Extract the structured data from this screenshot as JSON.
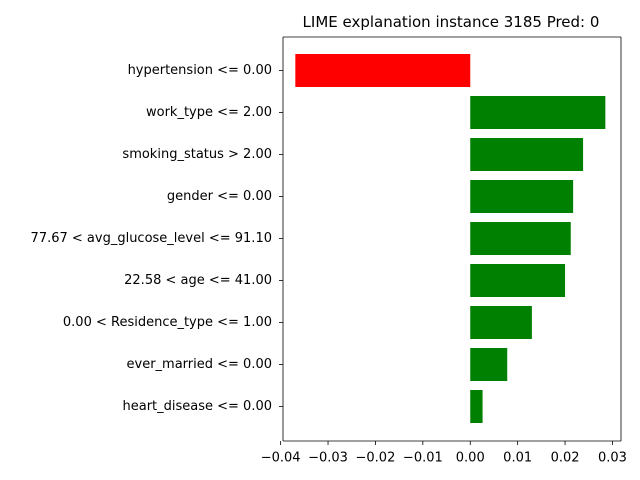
{
  "chart_data": {
    "type": "bar",
    "orientation": "horizontal",
    "title": "LIME explanation instance 3185 Pred: 0",
    "xlabel": "",
    "ylabel": "",
    "xlim": [
      -0.0395,
      0.0318
    ],
    "x_ticks": [
      -0.04,
      -0.03,
      -0.02,
      -0.01,
      0.0,
      0.01,
      0.02,
      0.03
    ],
    "x_tick_labels": [
      "−0.04",
      "−0.03",
      "−0.02",
      "−0.01",
      "0.00",
      "0.01",
      "0.02",
      "0.03"
    ],
    "grid": false,
    "colors": {
      "positive": "#008000",
      "negative": "#ff0000",
      "axis": "#000000"
    },
    "categories": [
      "hypertension <= 0.00",
      "work_type <= 2.00",
      "smoking_status > 2.00",
      "gender <= 0.00",
      "77.67 < avg_glucose_level <= 91.10",
      "22.58 < age <= 41.00",
      "0.00 < Residence_type <= 1.00",
      "ever_married <= 0.00",
      "heart_disease <= 0.00"
    ],
    "values": [
      -0.0369,
      0.0285,
      0.0238,
      0.0217,
      0.0212,
      0.02,
      0.013,
      0.0078,
      0.0026
    ]
  }
}
